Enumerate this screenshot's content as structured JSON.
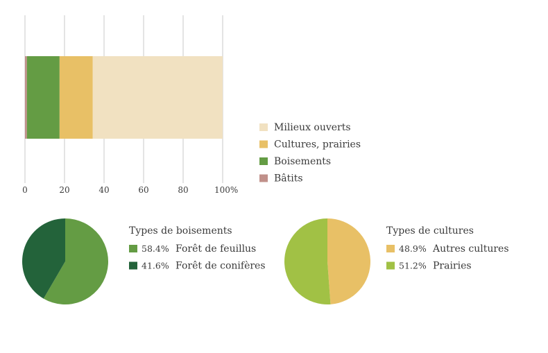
{
  "chart_data": [
    {
      "type": "bar",
      "orientation": "horizontal",
      "stacked": true,
      "categories": [
        ""
      ],
      "series": [
        {
          "name": "Bâtits",
          "values": [
            1
          ],
          "color": "#c0908a"
        },
        {
          "name": "Boisements",
          "values": [
            16.5
          ],
          "color": "#649c44"
        },
        {
          "name": "Cultures, prairies",
          "values": [
            16.8
          ],
          "color": "#e8c066"
        },
        {
          "name": "Milieux ouverts",
          "values": [
            65.7
          ],
          "color": "#f1e1c1"
        }
      ],
      "xlim": [
        0,
        100
      ],
      "xticks": [
        "0",
        "20",
        "40",
        "60",
        "80",
        "100%"
      ],
      "grid": true,
      "legend": {
        "placement": "right",
        "order": [
          "Milieux ouverts",
          "Cultures, prairies",
          "Boisements",
          "Bâtits"
        ]
      }
    },
    {
      "type": "pie",
      "title": "Types de boisements",
      "slices": [
        {
          "label": "Forêt de feuillus",
          "value": 58.4,
          "display": "58.4%",
          "color": "#649c44"
        },
        {
          "label": "Forêt de conifères",
          "value": 41.6,
          "display": "41.6%",
          "color": "#23633a"
        }
      ]
    },
    {
      "type": "pie",
      "title": "Types de cultures",
      "slices": [
        {
          "label": "Autres cultures",
          "value": 48.9,
          "display": "48.9%",
          "color": "#e8c066"
        },
        {
          "label": "Prairies",
          "value": 51.2,
          "display": "51.2%",
          "color": "#a1c145"
        }
      ]
    }
  ]
}
